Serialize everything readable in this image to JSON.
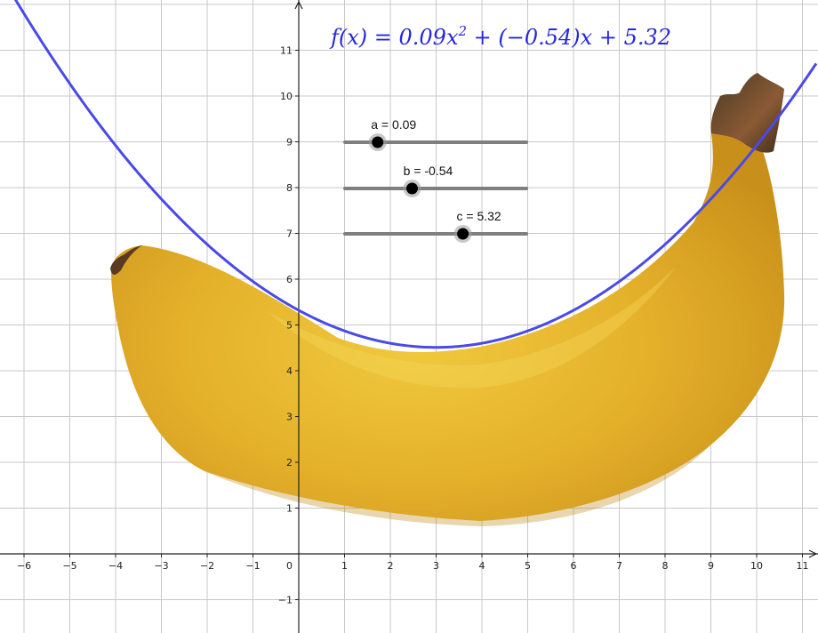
{
  "chart_data": {
    "type": "line",
    "title": "",
    "xlabel": "",
    "ylabel": "",
    "xlim": [
      -6.5,
      11.3
    ],
    "ylim": [
      -1.7,
      12.1
    ],
    "grid": true,
    "x_ticks": [
      "−6",
      "−5",
      "−4",
      "−3",
      "−2",
      "−1",
      "1",
      "2",
      "3",
      "4",
      "5",
      "6",
      "7",
      "8",
      "9",
      "10",
      "11"
    ],
    "x_tick_values": [
      -6,
      -5,
      -4,
      -3,
      -2,
      -1,
      1,
      2,
      3,
      4,
      5,
      6,
      7,
      8,
      9,
      10,
      11
    ],
    "y_ticks": [
      "−1",
      "1",
      "2",
      "3",
      "4",
      "5",
      "6",
      "7",
      "8",
      "9",
      "10",
      "11"
    ],
    "y_tick_values": [
      -1,
      1,
      2,
      3,
      4,
      5,
      6,
      7,
      8,
      9,
      10,
      11
    ],
    "origin_label": "0",
    "function": {
      "a": 0.09,
      "b": -0.54,
      "c": 5.32,
      "color": "#4a4ae8"
    },
    "equation_text": "f(x) = 0.09x² + (−0.54)x + 5.32",
    "equation_parts": {
      "lhs": "f(x) = 0.09x",
      "exp": "2",
      "rhs": " + (−0.54)x + 5.32"
    },
    "sliders": [
      {
        "label": "a = 0.09",
        "value": 0.09,
        "fraction": 0.18
      },
      {
        "label": "b = -0.54",
        "value": -0.54,
        "fraction": 0.37
      },
      {
        "label": "c = 5.32",
        "value": 5.32,
        "fraction": 0.65
      }
    ],
    "background_image": "banana",
    "colors": {
      "curve": "#4a4ae8",
      "equation": "#2727e0",
      "grid": "#c8c8c8",
      "axis": "#222222",
      "slider_track": "#7f7f7f",
      "banana": "#e3b42c",
      "banana_stem": "#6e4a2c"
    }
  }
}
